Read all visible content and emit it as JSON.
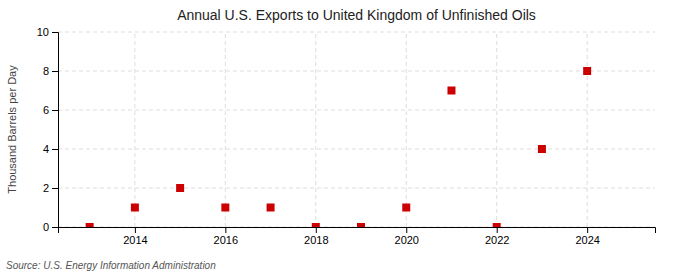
{
  "chart_data": {
    "type": "scatter",
    "title": "Annual U.S. Exports to United Kingdom of Unfinished Oils",
    "ylabel": "Thousand Barrels per Day",
    "annotation": "Source: U.S. Energy Information Administration",
    "x": [
      2013,
      2014,
      2015,
      2016,
      2017,
      2018,
      2019,
      2020,
      2021,
      2022,
      2023,
      2024
    ],
    "values": [
      0,
      1,
      2,
      1,
      1,
      0,
      0,
      1,
      7,
      0,
      4,
      8
    ],
    "color": "#cc0000",
    "marker": "square",
    "xlim": [
      2012.3,
      2025.5
    ],
    "ylim": [
      0,
      10
    ],
    "xticks": [
      2014,
      2016,
      2018,
      2020,
      2022,
      2024
    ],
    "yticks": [
      0,
      2,
      4,
      6,
      8,
      10
    ],
    "grid": true
  }
}
